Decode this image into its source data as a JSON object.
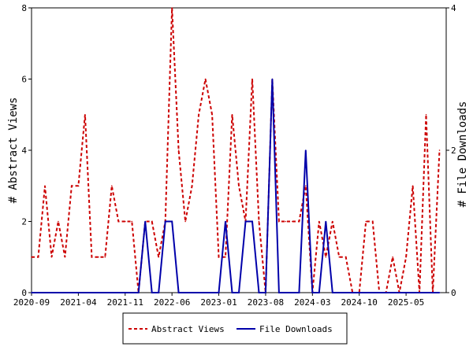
{
  "chart_data": {
    "type": "line",
    "title": "",
    "xlabel": "",
    "ylabel": "# Abstract Views",
    "y2label": "# File Downloads",
    "xlim": [
      0,
      62
    ],
    "ylim": [
      0,
      8
    ],
    "y2lim": [
      0,
      4
    ],
    "yticks": [
      0,
      2,
      4,
      6,
      8
    ],
    "y2ticks": [
      0,
      2,
      4
    ],
    "xticks": [
      {
        "label": "2020-09",
        "x": 0
      },
      {
        "label": "2021-04",
        "x": 7
      },
      {
        "label": "2021-11",
        "x": 14
      },
      {
        "label": "2022-06",
        "x": 21
      },
      {
        "label": "2023-01",
        "x": 28
      },
      {
        "label": "2023-08",
        "x": 35
      },
      {
        "label": "2024-03",
        "x": 42
      },
      {
        "label": "2024-10",
        "x": 49
      },
      {
        "label": "2025-05",
        "x": 56
      }
    ],
    "legend_position": "bottom",
    "series": [
      {
        "name": "Abstract Views",
        "axis": "left",
        "color": "#cc0000",
        "style": "dashed",
        "values": [
          1,
          1,
          3,
          1,
          2,
          1,
          3,
          3,
          5,
          1,
          1,
          1,
          3,
          2,
          2,
          2,
          0,
          2,
          2,
          1,
          2,
          8,
          4,
          2,
          3,
          5,
          6,
          5,
          1,
          1,
          5,
          3,
          2,
          6,
          2,
          0,
          6,
          2,
          2,
          2,
          2,
          3,
          0,
          2,
          1,
          2,
          1,
          1,
          0,
          0,
          2,
          2,
          0,
          0,
          1,
          0,
          1,
          3,
          0,
          5,
          0,
          4
        ]
      },
      {
        "name": "File Downloads",
        "axis": "right",
        "color": "#0000aa",
        "style": "solid",
        "values": [
          0,
          0,
          0,
          0,
          0,
          0,
          0,
          0,
          0,
          0,
          0,
          0,
          0,
          0,
          0,
          0,
          0,
          1,
          0,
          0,
          1,
          1,
          0,
          0,
          0,
          0,
          0,
          0,
          0,
          1,
          0,
          0,
          1,
          1,
          0,
          0,
          3,
          0,
          0,
          0,
          0,
          2,
          0,
          0,
          1,
          0,
          0,
          0,
          0,
          0,
          0,
          0,
          0,
          0,
          0,
          0,
          0,
          0,
          0,
          0,
          0,
          0
        ]
      }
    ]
  }
}
